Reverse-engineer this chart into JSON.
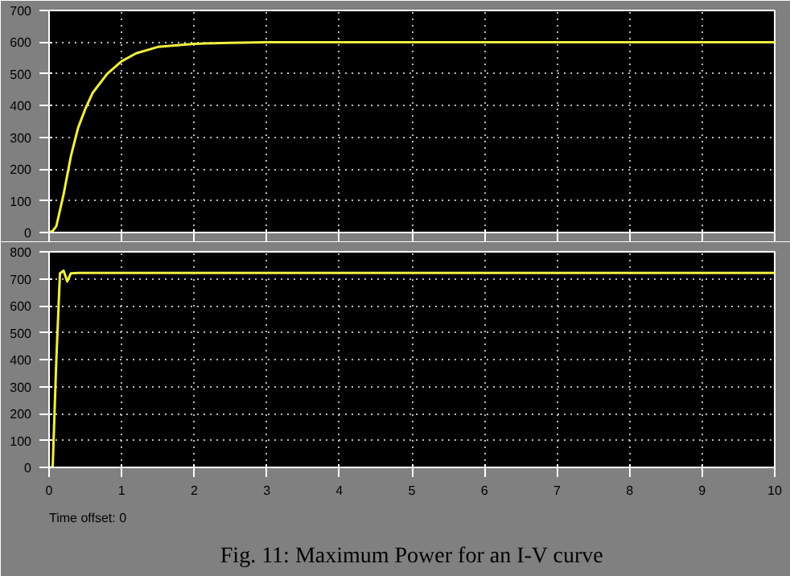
{
  "chart_data": [
    {
      "type": "line",
      "x": [
        0,
        0.05,
        0.1,
        0.2,
        0.3,
        0.4,
        0.5,
        0.6,
        0.8,
        1.0,
        1.2,
        1.5,
        2.0,
        2.5,
        3.0,
        10
      ],
      "series": [
        {
          "color": "#f0f040",
          "values": [
            0,
            5,
            20,
            120,
            240,
            330,
            390,
            440,
            500,
            540,
            565,
            585,
            595,
            598,
            600,
            600
          ]
        }
      ],
      "xlim": [
        0,
        10
      ],
      "xticks": [
        0,
        1,
        2,
        3,
        4,
        5,
        6,
        7,
        8,
        9,
        10
      ],
      "ylim": [
        0,
        700
      ],
      "yticks": [
        0,
        100,
        200,
        300,
        400,
        500,
        600,
        700
      ],
      "grid": true,
      "tick_labels": "y"
    },
    {
      "type": "line",
      "x": [
        0,
        0.05,
        0.1,
        0.15,
        0.2,
        0.25,
        0.3,
        0.4,
        10
      ],
      "series": [
        {
          "color": "#f0f040",
          "values": [
            0,
            0,
            400,
            720,
            730,
            690,
            720,
            722,
            722
          ]
        }
      ],
      "xlim": [
        0,
        10
      ],
      "xticks": [
        0,
        1,
        2,
        3,
        4,
        5,
        6,
        7,
        8,
        9,
        10
      ],
      "ylim": [
        0,
        800
      ],
      "yticks": [
        0,
        100,
        200,
        300,
        400,
        500,
        600,
        700,
        800
      ],
      "grid": true,
      "annotations": [
        "Time offset: 0",
        "Fig. 11: Maximum Power for an I-V curve"
      ]
    }
  ]
}
